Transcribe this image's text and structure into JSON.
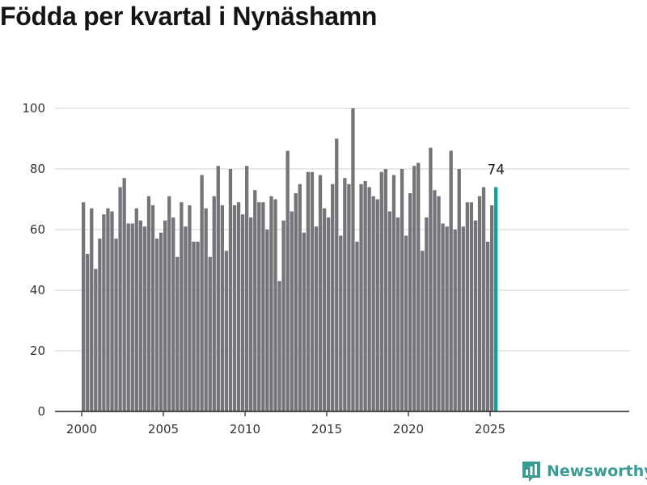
{
  "title": "Födda per kvartal i Nynäshamn",
  "brand": {
    "name": "Newsworthy",
    "icon": "newsworthy-logo-icon"
  },
  "colors": {
    "bar": "#747479",
    "highlight": "#13a096",
    "grid": "#dadada",
    "axis": "#333333",
    "brand": "#3a9a94"
  },
  "chart_data": {
    "type": "bar",
    "title": "Födda per kvartal i Nynäshamn",
    "xlabel": "",
    "ylabel": "",
    "x_ticks": [
      "2000",
      "2005",
      "2010",
      "2015",
      "2020",
      "2025"
    ],
    "y_ticks": [
      "0",
      "20",
      "40",
      "60",
      "80",
      "100"
    ],
    "ylim": [
      0,
      100
    ],
    "grid": true,
    "highlight_index": 101,
    "highlight_label": "74",
    "categories": [
      "2000 K1",
      "2000 K2",
      "2000 K3",
      "2000 K4",
      "2001 K1",
      "2001 K2",
      "2001 K3",
      "2001 K4",
      "2002 K1",
      "2002 K2",
      "2002 K3",
      "2002 K4",
      "2003 K1",
      "2003 K2",
      "2003 K3",
      "2003 K4",
      "2004 K1",
      "2004 K2",
      "2004 K3",
      "2004 K4",
      "2005 K1",
      "2005 K2",
      "2005 K3",
      "2005 K4",
      "2006 K1",
      "2006 K2",
      "2006 K3",
      "2006 K4",
      "2007 K1",
      "2007 K2",
      "2007 K3",
      "2007 K4",
      "2008 K1",
      "2008 K2",
      "2008 K3",
      "2008 K4",
      "2009 K1",
      "2009 K2",
      "2009 K3",
      "2009 K4",
      "2010 K1",
      "2010 K2",
      "2010 K3",
      "2010 K4",
      "2011 K1",
      "2011 K2",
      "2011 K3",
      "2011 K4",
      "2012 K1",
      "2012 K2",
      "2012 K3",
      "2012 K4",
      "2013 K1",
      "2013 K2",
      "2013 K3",
      "2013 K4",
      "2014 K1",
      "2014 K2",
      "2014 K3",
      "2014 K4",
      "2015 K1",
      "2015 K2",
      "2015 K3",
      "2015 K4",
      "2016 K1",
      "2016 K2",
      "2016 K3",
      "2016 K4",
      "2017 K1",
      "2017 K2",
      "2017 K3",
      "2017 K4",
      "2018 K1",
      "2018 K2",
      "2018 K3",
      "2018 K4",
      "2019 K1",
      "2019 K2",
      "2019 K3",
      "2019 K4",
      "2020 K1",
      "2020 K2",
      "2020 K3",
      "2020 K4",
      "2021 K1",
      "2021 K2",
      "2021 K3",
      "2021 K4",
      "2022 K1",
      "2022 K2",
      "2022 K3",
      "2022 K4",
      "2023 K1",
      "2023 K2",
      "2023 K3",
      "2023 K4",
      "2024 K1",
      "2024 K2",
      "2024 K3",
      "2024 K4",
      "2025 K1",
      "2025 K2"
    ],
    "values": [
      69,
      52,
      67,
      47,
      57,
      65,
      67,
      66,
      57,
      74,
      77,
      62,
      62,
      67,
      63,
      61,
      71,
      68,
      57,
      59,
      63,
      71,
      64,
      51,
      69,
      61,
      68,
      56,
      56,
      78,
      67,
      51,
      71,
      81,
      68,
      53,
      80,
      68,
      69,
      65,
      81,
      64,
      73,
      69,
      69,
      60,
      71,
      70,
      43,
      63,
      86,
      66,
      72,
      75,
      59,
      79,
      79,
      61,
      78,
      67,
      64,
      75,
      90,
      58,
      77,
      75,
      100,
      56,
      75,
      76,
      74,
      71,
      70,
      79,
      80,
      66,
      78,
      64,
      80,
      58,
      72,
      81,
      82,
      53,
      64,
      87,
      73,
      71,
      62,
      61,
      86,
      60,
      80,
      61,
      69,
      69,
      63,
      71,
      74,
      56,
      68,
      74
    ]
  }
}
